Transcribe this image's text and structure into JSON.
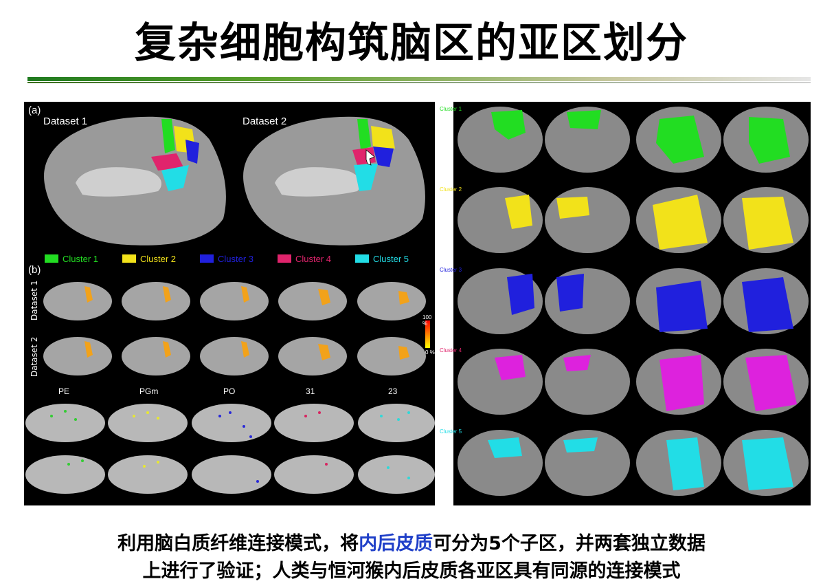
{
  "title": "复杂细胞构筑脑区的亚区划分",
  "panel_a": {
    "label": "(a)",
    "datasets": [
      "Dataset 1",
      "Dataset 2"
    ]
  },
  "legend": [
    {
      "name": "Cluster 1",
      "color": "#22dd22"
    },
    {
      "name": "Cluster 2",
      "color": "#f2e21a"
    },
    {
      "name": "Cluster 3",
      "color": "#2020dd"
    },
    {
      "name": "Cluster 4",
      "color": "#e0246c"
    },
    {
      "name": "Cluster 5",
      "color": "#22dde6"
    }
  ],
  "panel_b": {
    "label": "(b)",
    "rows": [
      "Dataset 1",
      "Dataset 2"
    ],
    "scale_max": "100 %",
    "scale_min": "0 %"
  },
  "monkey_regions": [
    "PE",
    "PGm",
    "PO",
    "31",
    "23"
  ],
  "right_clusters": [
    "Cluster 1",
    "Cluster 2",
    "Cluster 3",
    "Cluster 4",
    "Cluster 5"
  ],
  "caption": {
    "line1_pre": "利用脑白质纤维连接模式，将",
    "line1_highlight": "内后皮质",
    "line1_post": "可分为5个子区，并两套独立数据",
    "line2": "上进行了验证；人类与恒河猴内后皮质各亚区具有同源的连接模式"
  }
}
